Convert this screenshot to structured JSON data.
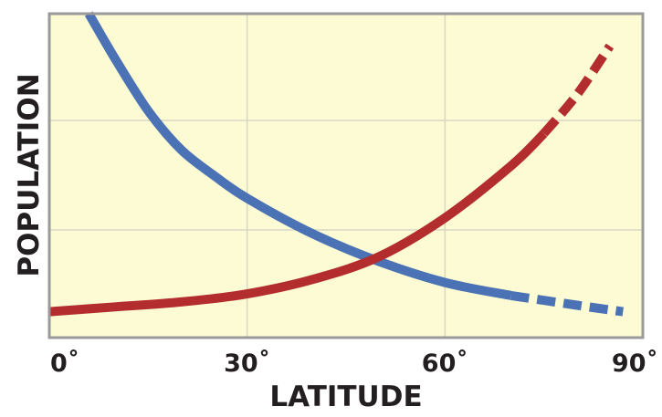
{
  "chart_data": {
    "type": "line",
    "title": "",
    "xlabel": "LATITUDE",
    "ylabel": "POPULATION",
    "x_tick_labels": [
      "0˚",
      "30˚",
      "60˚",
      "90˚"
    ],
    "x_ticks": [
      0,
      30,
      60,
      90
    ],
    "xlim": [
      0,
      90
    ],
    "ylim": [
      0,
      100
    ],
    "grid": true,
    "legend": "none",
    "background_color": "#fdfbd4",
    "series": [
      {
        "color": "#4a72b5",
        "solid_until_x": 70,
        "points": [
          [
            6,
            100
          ],
          [
            10,
            86
          ],
          [
            15,
            70
          ],
          [
            20,
            58
          ],
          [
            25,
            50
          ],
          [
            30,
            43
          ],
          [
            40,
            32
          ],
          [
            50,
            23.5
          ],
          [
            60,
            17
          ],
          [
            70,
            13
          ],
          [
            80,
            10
          ],
          [
            87,
            8
          ]
        ]
      },
      {
        "color": "#b32d2e",
        "solid_until_x": 75,
        "points": [
          [
            0,
            8
          ],
          [
            10,
            9.5
          ],
          [
            20,
            11
          ],
          [
            30,
            13.5
          ],
          [
            40,
            18
          ],
          [
            50,
            25
          ],
          [
            60,
            37
          ],
          [
            70,
            53
          ],
          [
            75,
            63
          ],
          [
            80,
            75
          ],
          [
            85,
            90
          ]
        ]
      }
    ]
  }
}
